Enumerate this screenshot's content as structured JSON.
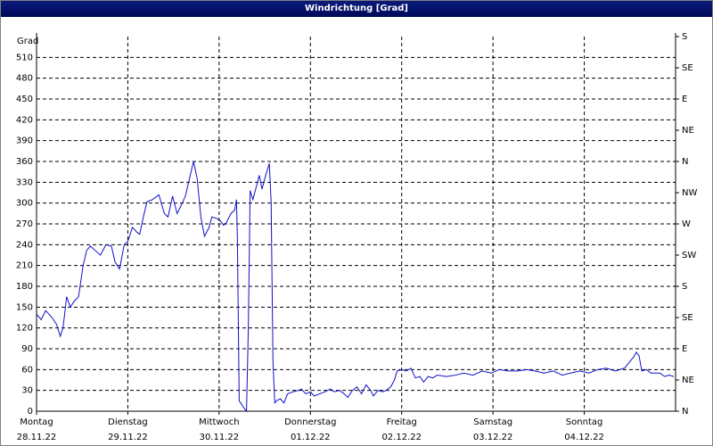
{
  "chart_data": {
    "type": "line",
    "title": "Windrichtung [Grad]",
    "ylabel": "Grad",
    "color": "#1010c8",
    "grid": true,
    "xlim": [
      0,
      7
    ],
    "xticks": [
      {
        "value": 0,
        "label": "Montag"
      },
      {
        "value": 1,
        "label": "Dienstag"
      },
      {
        "value": 2,
        "label": "Mittwoch"
      },
      {
        "value": 3,
        "label": "Donnerstag"
      },
      {
        "value": 4,
        "label": "Freitag"
      },
      {
        "value": 5,
        "label": "Samstag"
      },
      {
        "value": 6,
        "label": "Sonntag"
      }
    ],
    "xtick_dates": [
      "28.11.22",
      "29.11.22",
      "30.11.22",
      "01.12.22",
      "02.12.22",
      "03.12.22",
      "04.12.22"
    ],
    "ylim": [
      0,
      540
    ],
    "yticks": [
      0,
      30,
      60,
      90,
      120,
      150,
      180,
      210,
      240,
      270,
      300,
      330,
      360,
      390,
      420,
      450,
      480,
      510
    ],
    "y2lim": [
      0,
      540
    ],
    "y2ticks": [
      {
        "value": 0,
        "label": "N"
      },
      {
        "value": 45,
        "label": "NE"
      },
      {
        "value": 90,
        "label": "E"
      },
      {
        "value": 135,
        "label": "SE"
      },
      {
        "value": 180,
        "label": "S"
      },
      {
        "value": 225,
        "label": "SW"
      },
      {
        "value": 270,
        "label": "W"
      },
      {
        "value": 315,
        "label": "NW"
      },
      {
        "value": 360,
        "label": "N"
      },
      {
        "value": 405,
        "label": "NE"
      },
      {
        "value": 450,
        "label": "E"
      },
      {
        "value": 495,
        "label": "SE"
      },
      {
        "value": 540,
        "label": "S"
      }
    ],
    "x": [
      0,
      0.05,
      0.1,
      0.17,
      0.22,
      0.26,
      0.29,
      0.33,
      0.37,
      0.41,
      0.46,
      0.51,
      0.55,
      0.59,
      0.64,
      0.7,
      0.76,
      0.82,
      0.86,
      0.91,
      0.96,
      1.0,
      1.05,
      1.1,
      1.13,
      1.17,
      1.21,
      1.27,
      1.34,
      1.4,
      1.44,
      1.49,
      1.54,
      1.59,
      1.63,
      1.68,
      1.72,
      1.76,
      1.8,
      1.84,
      1.89,
      1.92,
      1.97,
      2.01,
      2.05,
      2.08,
      2.13,
      2.17,
      2.19,
      2.2,
      2.22,
      2.27,
      2.3,
      2.32,
      2.34,
      2.37,
      2.41,
      2.44,
      2.47,
      2.51,
      2.55,
      2.57,
      2.59,
      2.61,
      2.63,
      2.67,
      2.71,
      2.75,
      2.81,
      2.87,
      2.9,
      2.95,
      3.0,
      3.04,
      3.1,
      3.16,
      3.22,
      3.26,
      3.32,
      3.37,
      3.41,
      3.46,
      3.51,
      3.56,
      3.61,
      3.66,
      3.69,
      3.74,
      3.79,
      3.83,
      3.88,
      3.92,
      3.95,
      4.0,
      4.05,
      4.1,
      4.15,
      4.2,
      4.24,
      4.29,
      4.34,
      4.39,
      4.49,
      4.59,
      4.68,
      4.78,
      4.88,
      4.98,
      5.07,
      5.17,
      5.27,
      5.37,
      5.46,
      5.56,
      5.66,
      5.76,
      5.85,
      5.95,
      6.05,
      6.15,
      6.24,
      6.34,
      6.44,
      6.49,
      6.54,
      6.57,
      6.6,
      6.63,
      6.68,
      6.73,
      6.83,
      6.88,
      6.93,
      6.98
    ],
    "values": [
      140,
      132,
      145,
      135,
      125,
      108,
      120,
      165,
      150,
      158,
      165,
      210,
      232,
      238,
      232,
      225,
      240,
      238,
      215,
      205,
      240,
      245,
      265,
      258,
      255,
      280,
      302,
      305,
      312,
      285,
      280,
      310,
      285,
      298,
      310,
      338,
      360,
      335,
      280,
      252,
      265,
      280,
      278,
      275,
      268,
      272,
      285,
      290,
      305,
      250,
      15,
      5,
      0,
      120,
      318,
      305,
      325,
      340,
      320,
      340,
      357,
      300,
      70,
      12,
      15,
      18,
      12,
      25,
      28,
      30,
      32,
      25,
      28,
      22,
      25,
      28,
      32,
      28,
      30,
      25,
      20,
      30,
      35,
      25,
      38,
      30,
      22,
      30,
      28,
      30,
      35,
      45,
      58,
      60,
      58,
      62,
      48,
      50,
      42,
      50,
      48,
      52,
      50,
      52,
      55,
      52,
      58,
      55,
      60,
      58,
      58,
      60,
      58,
      55,
      58,
      52,
      55,
      58,
      55,
      60,
      62,
      58,
      62,
      70,
      78,
      85,
      80,
      58,
      60,
      55,
      55,
      50,
      52,
      50
    ]
  }
}
